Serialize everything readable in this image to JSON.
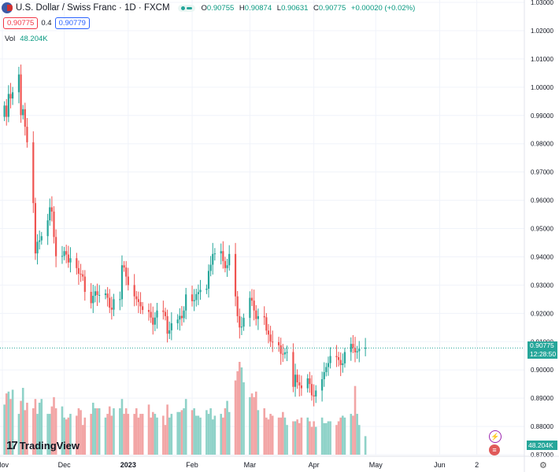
{
  "header": {
    "title": "U.S. Dollar / Swiss Franc · 1D · FXCM",
    "open_label": "O",
    "open": "0.90755",
    "high_label": "H",
    "high": "0.90874",
    "low_label": "L",
    "low": "0.90631",
    "close_label": "C",
    "close": "0.90775",
    "change": "+0.00020 (+0.02%)",
    "sell_price": "0.90775",
    "spread": "0.4",
    "buy_price": "0.90779"
  },
  "volume": {
    "label": "Vol",
    "value": "48.204K",
    "axis_label": "48.204K"
  },
  "price_label": {
    "price": "0.90775",
    "countdown": "12:28:50"
  },
  "branding": "TradingView",
  "colors": {
    "up": "#26a69a",
    "down": "#ef5350",
    "vol_up": "#8fd2c8",
    "vol_down": "#f2a5a5",
    "grid": "#f0f3fa"
  },
  "chart_data": {
    "type": "candlestick",
    "y_ticks": [
      "1.03000",
      "1.02000",
      "1.01000",
      "1.00000",
      "0.99000",
      "0.98000",
      "0.97000",
      "0.96000",
      "0.95000",
      "0.94000",
      "0.93000",
      "0.92000",
      "0.91000",
      "0.90000",
      "0.89000",
      "0.88000",
      "0.87000"
    ],
    "ylim": [
      0.87,
      1.03
    ],
    "x_ticks": [
      "Nov",
      "Dec",
      "2023",
      "Feb",
      "Mar",
      "Apr",
      "May",
      "Jun",
      "2"
    ],
    "x_tick_days": [
      0,
      30,
      61,
      92,
      120,
      151,
      181,
      212,
      230
    ],
    "start_date": "2022-10-23",
    "closes": [
      0.9935,
      0.9895,
      0.9976,
      0.996,
      0.9982,
      1.0045,
      0.9901,
      0.9922,
      0.986,
      0.9805,
      0.959,
      0.9412,
      0.9453,
      0.9458,
      0.9473,
      0.9529,
      0.9575,
      0.956,
      0.947,
      0.9402,
      0.9403,
      0.942,
      0.9408,
      0.938,
      0.9395,
      0.936,
      0.934,
      0.9338,
      0.933,
      0.9276,
      0.9236,
      0.9262,
      0.9278,
      0.9265,
      0.9265,
      0.927,
      0.9255,
      0.922,
      0.9213,
      0.925,
      0.925,
      0.937,
      0.9362,
      0.933,
      0.93,
      0.926,
      0.925,
      0.924,
      0.9225,
      0.9212,
      0.9205,
      0.9185,
      0.916,
      0.9185,
      0.921,
      0.9205,
      0.919,
      0.9128,
      0.914,
      0.9165,
      0.9178,
      0.9191,
      0.9183,
      0.921,
      0.9267,
      0.9243,
      0.9247,
      0.9268,
      0.9275,
      0.9283,
      0.9287,
      0.935,
      0.9372,
      0.941,
      0.9412,
      0.942,
      0.9385,
      0.936,
      0.937,
      0.941,
      0.926,
      0.919,
      0.915,
      0.9153,
      0.9184,
      0.9255,
      0.9245,
      0.921,
      0.918,
      0.919,
      0.9186,
      0.9139,
      0.9125,
      0.91,
      0.9098,
      0.9087,
      0.9057,
      0.9055,
      0.9062,
      0.9063,
      0.894,
      0.8983,
      0.8956,
      0.8945,
      0.8935,
      0.897,
      0.895,
      0.891,
      0.8906,
      0.8927,
      0.8967,
      0.8992,
      0.901,
      0.9024,
      0.9049,
      0.9045,
      0.9035,
      0.9017,
      0.9023,
      0.9063,
      0.9092,
      0.9078,
      0.9062,
      0.9066,
      0.9075,
      0.9078
    ],
    "volumes": [
      27,
      33,
      34,
      30,
      35,
      22,
      29,
      36,
      24,
      28,
      25,
      30,
      22,
      28,
      30,
      22,
      22,
      26,
      31,
      25,
      26,
      20,
      19,
      20,
      22,
      21,
      25,
      24,
      16,
      20,
      22,
      28,
      25,
      25,
      25,
      20,
      22,
      26,
      21,
      25,
      25,
      30,
      22,
      25,
      22,
      22,
      25,
      20,
      22,
      22,
      27,
      20,
      23,
      22,
      20,
      21,
      16,
      27,
      20,
      22,
      23,
      23,
      24,
      25,
      30,
      24,
      25,
      21,
      21,
      20,
      24,
      22,
      25,
      19,
      21,
      22,
      20,
      25,
      29,
      23,
      40,
      45,
      50,
      47,
      39,
      31,
      33,
      31,
      34,
      24,
      25,
      20,
      19,
      22,
      21,
      20,
      20,
      23,
      20,
      16,
      18,
      18,
      19,
      17,
      20,
      20,
      18,
      15,
      18,
      15,
      20,
      17,
      17,
      18,
      18,
      16,
      18,
      20,
      21,
      20,
      22,
      21,
      37,
      22,
      16,
      10
    ],
    "last_price": 0.90775,
    "volume_last": "48.204K"
  }
}
